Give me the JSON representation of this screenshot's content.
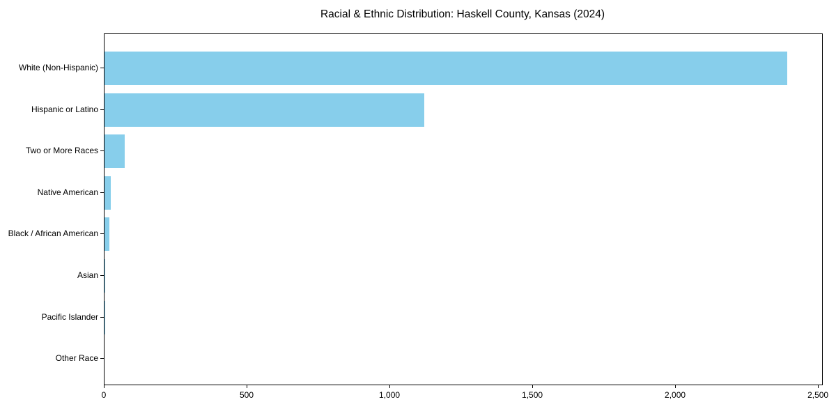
{
  "chart_data": {
    "type": "bar",
    "orientation": "horizontal",
    "title": "Racial & Ethnic Distribution: Haskell County, Kansas (2024)",
    "categories": [
      "White (Non-Hispanic)",
      "Hispanic or Latino",
      "Two or More Races",
      "Native American",
      "Black / African American",
      "Asian",
      "Pacific Islander",
      "Other Race"
    ],
    "values": [
      2390,
      1120,
      70,
      21,
      17,
      2,
      1,
      0
    ],
    "xlabel": "",
    "ylabel": "",
    "xlim": [
      0,
      2512
    ],
    "x_ticks": [
      {
        "value": 0,
        "label": "0"
      },
      {
        "value": 500,
        "label": "500"
      },
      {
        "value": 1000,
        "label": "1,000"
      },
      {
        "value": 1500,
        "label": "1,500"
      },
      {
        "value": 2000,
        "label": "2,000"
      },
      {
        "value": 2500,
        "label": "2,500"
      }
    ],
    "grid": false,
    "legend": null,
    "bar_color": "#87CEEB"
  },
  "styles": {
    "background_color": "#ffffff",
    "text_color": "#000000",
    "spine_color": "#000000"
  }
}
